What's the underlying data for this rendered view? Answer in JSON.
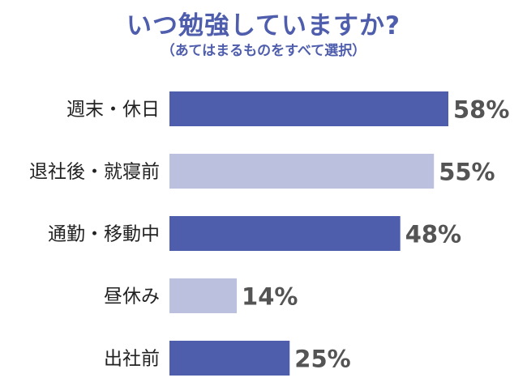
{
  "colors": {
    "title": "#4f5eac",
    "bar_dark": "#4f5eac",
    "bar_light": "#bcc0df",
    "value_text": "#545454",
    "label_text": "#222222"
  },
  "chart_data": {
    "type": "bar",
    "orientation": "horizontal",
    "title": "いつ勉強していますか?",
    "subtitle": "（あてはまるものをすべて選択）",
    "categories": [
      "週末・休日",
      "退社後・就寝前",
      "通勤・移動中",
      "昼休み",
      "出社前"
    ],
    "values": [
      58,
      55,
      48,
      14,
      25
    ],
    "value_labels": [
      "58%",
      "55%",
      "48%",
      "14%",
      "25%"
    ],
    "bar_colors": [
      "#4f5eac",
      "#bcc0df",
      "#4f5eac",
      "#bcc0df",
      "#4f5eac"
    ],
    "xlim": [
      0,
      100
    ],
    "grid": false,
    "legend": "none"
  }
}
